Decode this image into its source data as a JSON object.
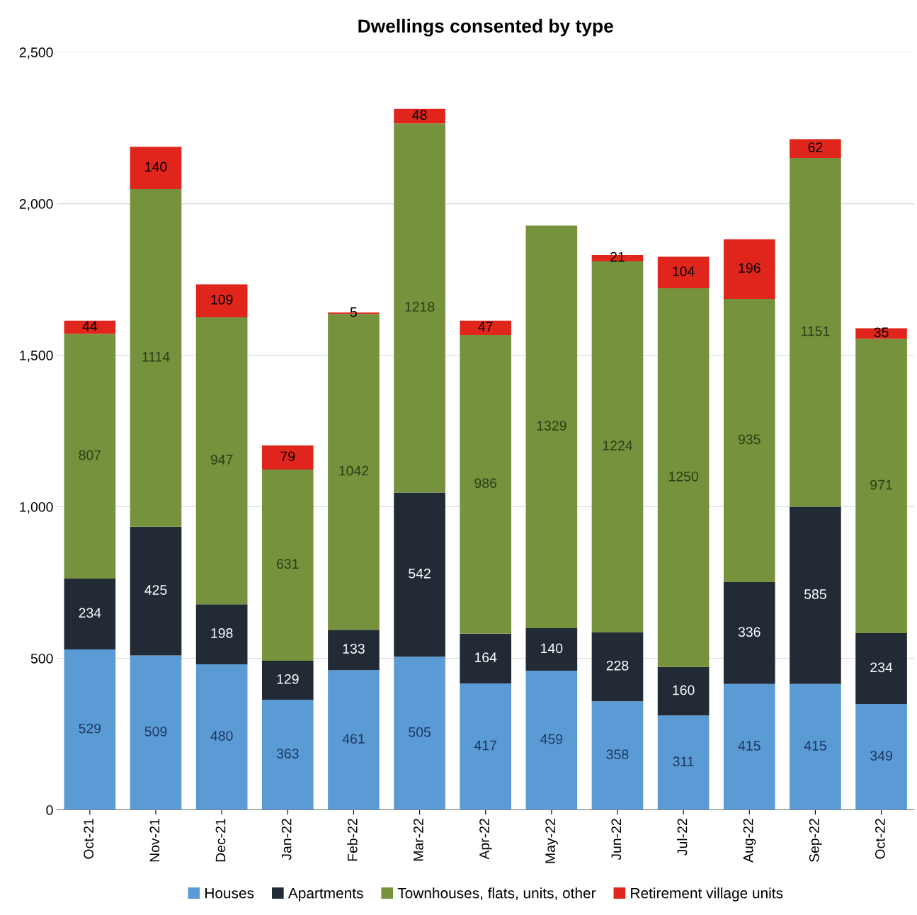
{
  "chart_data": {
    "type": "bar",
    "title": "Dwellings consented by type",
    "stacked": true,
    "data_labels": true,
    "grid": "y",
    "legend": "bottom",
    "categories": [
      "Oct-21",
      "Nov-21",
      "Dec-21",
      "Jan-22",
      "Feb-22",
      "Mar-22",
      "Apr-22",
      "May-22",
      "Jun-22",
      "Jul-22",
      "Aug-22",
      "Sep-22",
      "Oct-22"
    ],
    "series": [
      {
        "name": "Houses",
        "color": "#5b9bd5",
        "values": [
          529,
          509,
          480,
          363,
          461,
          505,
          417,
          459,
          358,
          311,
          415,
          415,
          349
        ]
      },
      {
        "name": "Apartments",
        "color": "#222a35",
        "values": [
          234,
          425,
          198,
          129,
          133,
          542,
          164,
          140,
          228,
          160,
          336,
          585,
          234
        ]
      },
      {
        "name": "Townhouses, flats, units, other",
        "color": "#76923c",
        "values": [
          807,
          1114,
          947,
          631,
          1042,
          1218,
          986,
          1329,
          1224,
          1250,
          935,
          1151,
          971
        ]
      },
      {
        "name": "Retirement village units",
        "color": "#e0261c",
        "values": [
          44,
          140,
          109,
          79,
          5,
          48,
          47,
          null,
          21,
          104,
          196,
          62,
          35
        ]
      }
    ],
    "ylim": [
      0,
      2500
    ],
    "yticks": [
      0,
      {
        "value": 500,
        "label": "500"
      },
      {
        "value": 1000,
        "label": "1,000"
      },
      {
        "value": 1500,
        "label": "1,500"
      },
      {
        "value": 2000,
        "label": "2,000"
      },
      {
        "value": 2500,
        "label": "2,500"
      }
    ]
  }
}
